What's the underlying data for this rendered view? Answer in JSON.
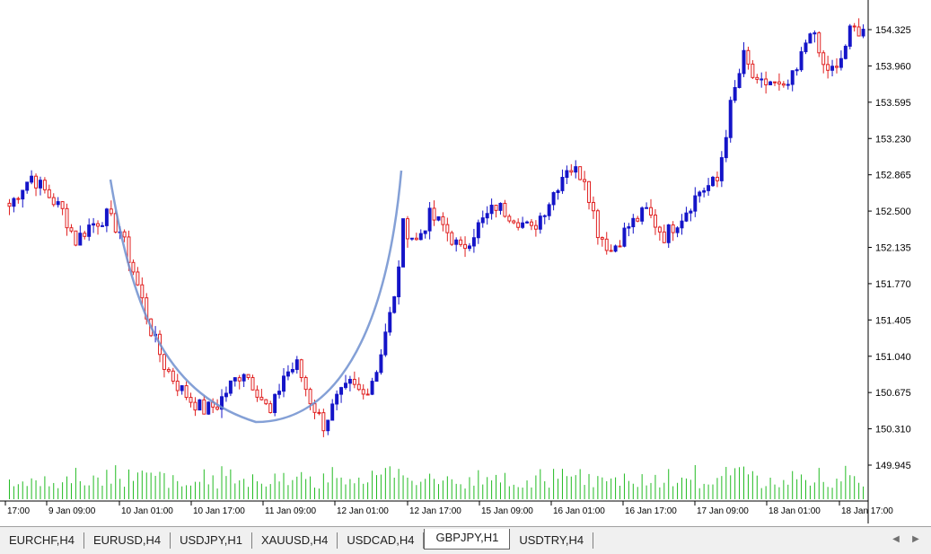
{
  "chart": {
    "symbol": "GBPJPY",
    "timeframe": "H1",
    "colors": {
      "bull": "#1414c8",
      "bear": "#e02020",
      "volume": "#22bb22",
      "curve": "#6f8fcf",
      "axis": "#000000"
    },
    "price_axis": {
      "labels": [
        "154.325",
        "153.960",
        "153.595",
        "153.230",
        "152.865",
        "152.500",
        "152.135",
        "151.770",
        "151.405",
        "151.040",
        "150.675",
        "150.310",
        "149.945"
      ]
    },
    "time_axis": {
      "labels": [
        "17:00",
        "9 Jan 09:00",
        "10 Jan 01:00",
        "10 Jan 17:00",
        "11 Jan 09:00",
        "12 Jan 01:00",
        "12 Jan 17:00",
        "15 Jan 09:00",
        "16 Jan 01:00",
        "16 Jan 17:00",
        "17 Jan 09:00",
        "18 Jan 01:00",
        "18 Jan 17:00"
      ]
    }
  },
  "chart_data": {
    "type": "candlestick",
    "symbol": "GBPJPY",
    "timeframe": "H1",
    "y_range": [
      149.8,
      154.5
    ],
    "price_path": [
      [
        0,
        152.55
      ],
      [
        3,
        152.75
      ],
      [
        5,
        152.85
      ],
      [
        8,
        152.7
      ],
      [
        12,
        152.5
      ],
      [
        15,
        152.2
      ],
      [
        18,
        152.35
      ],
      [
        22,
        152.45
      ],
      [
        25,
        152.3
      ],
      [
        28,
        151.9
      ],
      [
        32,
        151.3
      ],
      [
        35,
        150.95
      ],
      [
        38,
        150.75
      ],
      [
        41,
        150.6
      ],
      [
        44,
        150.5
      ],
      [
        47,
        150.55
      ],
      [
        50,
        150.75
      ],
      [
        53,
        150.9
      ],
      [
        56,
        150.7
      ],
      [
        59,
        150.45
      ],
      [
        62,
        150.85
      ],
      [
        65,
        150.95
      ],
      [
        68,
        150.6
      ],
      [
        71,
        150.35
      ],
      [
        74,
        150.6
      ],
      [
        77,
        150.75
      ],
      [
        80,
        150.65
      ],
      [
        83,
        150.9
      ],
      [
        85,
        151.3
      ],
      [
        87,
        151.6
      ],
      [
        89,
        152.35
      ],
      [
        92,
        152.2
      ],
      [
        95,
        152.45
      ],
      [
        98,
        152.35
      ],
      [
        102,
        152.1
      ],
      [
        106,
        152.35
      ],
      [
        110,
        152.55
      ],
      [
        114,
        152.45
      ],
      [
        118,
        152.3
      ],
      [
        122,
        152.6
      ],
      [
        126,
        152.95
      ],
      [
        130,
        152.85
      ],
      [
        133,
        152.3
      ],
      [
        136,
        152.1
      ],
      [
        140,
        152.35
      ],
      [
        144,
        152.5
      ],
      [
        148,
        152.25
      ],
      [
        152,
        152.45
      ],
      [
        156,
        152.7
      ],
      [
        160,
        152.8
      ],
      [
        163,
        153.55
      ],
      [
        166,
        154.05
      ],
      [
        169,
        153.75
      ],
      [
        172,
        153.8
      ],
      [
        175,
        153.7
      ],
      [
        178,
        153.9
      ],
      [
        181,
        154.35
      ],
      [
        184,
        153.95
      ],
      [
        187,
        153.9
      ],
      [
        190,
        154.3
      ],
      [
        193,
        154.35
      ]
    ],
    "n_candles": 194,
    "volume_range": [
      0,
      1
    ]
  },
  "tabs": [
    {
      "label": "EURCHF,H4",
      "active": false
    },
    {
      "label": "EURUSD,H4",
      "active": false
    },
    {
      "label": "USDJPY,H1",
      "active": false
    },
    {
      "label": "XAUUSD,H4",
      "active": false
    },
    {
      "label": "USDCAD,H4",
      "active": false
    },
    {
      "label": "GBPJPY,H1",
      "active": true
    },
    {
      "label": "USDTRY,H4",
      "active": false
    }
  ],
  "scroll": {
    "left": "◀",
    "right": "▶"
  }
}
